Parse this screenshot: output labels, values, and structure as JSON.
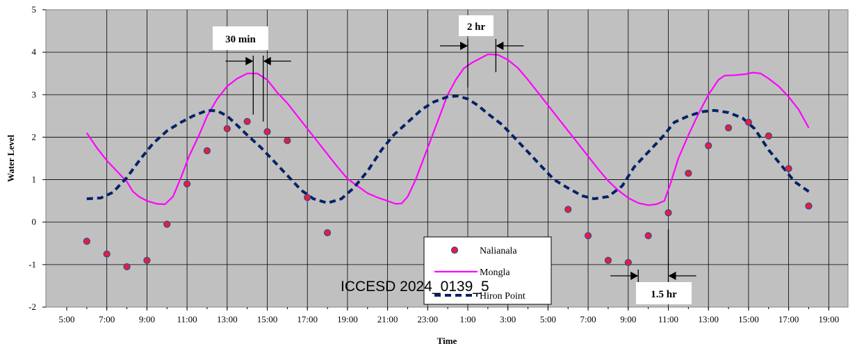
{
  "chart_data": {
    "type": "line",
    "xlabel": "Time",
    "ylabel": "Water Level",
    "ylim": [
      -2,
      5
    ],
    "x_tick_labels": [
      "5:00",
      "7:00",
      "9:00",
      "11:00",
      "13:00",
      "15:00",
      "17:00",
      "19:00",
      "21:00",
      "23:00",
      "1:00",
      "3:00",
      "5:00",
      "7:00",
      "9:00",
      "11:00",
      "13:00",
      "15:00",
      "17:00",
      "19:00"
    ],
    "y_tick_labels": [
      "-2",
      "-1",
      "0",
      "1",
      "2",
      "3",
      "4",
      "5"
    ],
    "grid": true,
    "legend_position": "bottom-center",
    "watermark": "ICCESD 2024_0139_5",
    "series": [
      {
        "name": "Nalianala",
        "style": "marker",
        "color": "#e8202a",
        "points": [
          [
            6,
            -0.45
          ],
          [
            7,
            -0.75
          ],
          [
            8,
            -1.05
          ],
          [
            9,
            -0.9
          ],
          [
            10,
            -0.05
          ],
          [
            11,
            0.9
          ],
          [
            12,
            1.68
          ],
          [
            13,
            2.2
          ],
          [
            14,
            2.37
          ],
          [
            15,
            2.13
          ],
          [
            16,
            1.92
          ],
          [
            17,
            0.58
          ],
          [
            18,
            -0.25
          ],
          [
            30,
            0.3
          ],
          [
            31,
            -0.32
          ],
          [
            32,
            -0.9
          ],
          [
            33,
            -0.95
          ],
          [
            34,
            -0.32
          ],
          [
            35,
            0.22
          ],
          [
            36,
            1.15
          ],
          [
            37,
            1.8
          ],
          [
            38,
            2.22
          ],
          [
            39,
            2.35
          ],
          [
            40,
            2.03
          ],
          [
            41,
            1.26
          ],
          [
            42,
            0.38
          ]
        ]
      },
      {
        "name": "Mongla",
        "style": "line",
        "color": "#ff00ff",
        "points": [
          [
            6,
            2.1
          ],
          [
            6.5,
            1.75
          ],
          [
            7,
            1.45
          ],
          [
            7.5,
            1.2
          ],
          [
            8,
            0.95
          ],
          [
            8.3,
            0.72
          ],
          [
            8.6,
            0.6
          ],
          [
            9,
            0.5
          ],
          [
            9.5,
            0.43
          ],
          [
            9.9,
            0.42
          ],
          [
            10.3,
            0.6
          ],
          [
            10.7,
            1.05
          ],
          [
            11.1,
            1.55
          ],
          [
            11.6,
            2.05
          ],
          [
            12,
            2.5
          ],
          [
            12.5,
            2.9
          ],
          [
            13,
            3.2
          ],
          [
            13.5,
            3.38
          ],
          [
            14,
            3.5
          ],
          [
            14.5,
            3.5
          ],
          [
            15,
            3.35
          ],
          [
            15.5,
            3.05
          ],
          [
            16,
            2.8
          ],
          [
            16.5,
            2.5
          ],
          [
            17,
            2.2
          ],
          [
            17.5,
            1.9
          ],
          [
            18,
            1.6
          ],
          [
            18.5,
            1.3
          ],
          [
            19,
            1.02
          ],
          [
            19.5,
            0.85
          ],
          [
            20,
            0.68
          ],
          [
            20.5,
            0.58
          ],
          [
            21,
            0.5
          ],
          [
            21.4,
            0.43
          ],
          [
            21.7,
            0.44
          ],
          [
            22,
            0.6
          ],
          [
            22.4,
            1.0
          ],
          [
            22.8,
            1.5
          ],
          [
            23.2,
            2.0
          ],
          [
            23.6,
            2.5
          ],
          [
            24,
            3.0
          ],
          [
            24.4,
            3.35
          ],
          [
            24.8,
            3.62
          ],
          [
            25.2,
            3.75
          ],
          [
            25.6,
            3.85
          ],
          [
            26,
            3.95
          ],
          [
            26.5,
            3.94
          ],
          [
            27,
            3.82
          ],
          [
            27.5,
            3.63
          ],
          [
            28,
            3.35
          ],
          [
            28.5,
            3.05
          ],
          [
            29,
            2.75
          ],
          [
            29.5,
            2.45
          ],
          [
            30,
            2.15
          ],
          [
            30.5,
            1.85
          ],
          [
            31,
            1.55
          ],
          [
            31.5,
            1.25
          ],
          [
            32,
            0.97
          ],
          [
            32.5,
            0.75
          ],
          [
            33,
            0.57
          ],
          [
            33.5,
            0.45
          ],
          [
            34,
            0.4
          ],
          [
            34.4,
            0.42
          ],
          [
            34.8,
            0.5
          ],
          [
            35.1,
            0.9
          ],
          [
            35.5,
            1.5
          ],
          [
            36,
            2.05
          ],
          [
            36.5,
            2.55
          ],
          [
            37,
            3.0
          ],
          [
            37.5,
            3.35
          ],
          [
            37.8,
            3.45
          ],
          [
            38.3,
            3.46
          ],
          [
            38.8,
            3.48
          ],
          [
            39.2,
            3.52
          ],
          [
            39.6,
            3.5
          ],
          [
            40,
            3.38
          ],
          [
            40.5,
            3.2
          ],
          [
            41,
            2.95
          ],
          [
            41.5,
            2.65
          ],
          [
            42,
            2.22
          ]
        ]
      },
      {
        "name": "Hiron Point",
        "style": "dashed",
        "color": "#002266",
        "points": [
          [
            6,
            0.55
          ],
          [
            6.7,
            0.57
          ],
          [
            7.3,
            0.7
          ],
          [
            8,
            1.05
          ],
          [
            8.7,
            1.5
          ],
          [
            9.3,
            1.85
          ],
          [
            10,
            2.15
          ],
          [
            10.7,
            2.35
          ],
          [
            11.3,
            2.5
          ],
          [
            12,
            2.63
          ],
          [
            12.5,
            2.62
          ],
          [
            13,
            2.5
          ],
          [
            13.5,
            2.28
          ],
          [
            14,
            2.05
          ],
          [
            14.7,
            1.75
          ],
          [
            15.3,
            1.45
          ],
          [
            16,
            1.1
          ],
          [
            16.7,
            0.75
          ],
          [
            17.3,
            0.55
          ],
          [
            18,
            0.45
          ],
          [
            18.7,
            0.55
          ],
          [
            19.3,
            0.8
          ],
          [
            20,
            1.2
          ],
          [
            20.7,
            1.7
          ],
          [
            21.3,
            2.05
          ],
          [
            22,
            2.35
          ],
          [
            22.7,
            2.65
          ],
          [
            23.3,
            2.83
          ],
          [
            24,
            2.95
          ],
          [
            24.5,
            2.97
          ],
          [
            25,
            2.9
          ],
          [
            25.5,
            2.75
          ],
          [
            26,
            2.55
          ],
          [
            26.7,
            2.3
          ],
          [
            27.3,
            2.0
          ],
          [
            28,
            1.65
          ],
          [
            28.7,
            1.3
          ],
          [
            29.3,
            1.0
          ],
          [
            30,
            0.8
          ],
          [
            30.7,
            0.62
          ],
          [
            31.3,
            0.55
          ],
          [
            32,
            0.6
          ],
          [
            32.7,
            0.85
          ],
          [
            33.3,
            1.3
          ],
          [
            34,
            1.65
          ],
          [
            34.7,
            2.0
          ],
          [
            35.3,
            2.35
          ],
          [
            36,
            2.5
          ],
          [
            36.7,
            2.6
          ],
          [
            37.3,
            2.63
          ],
          [
            38,
            2.58
          ],
          [
            38.7,
            2.45
          ],
          [
            39.3,
            2.2
          ],
          [
            40,
            1.7
          ],
          [
            40.7,
            1.3
          ],
          [
            41.3,
            0.95
          ],
          [
            42,
            0.72
          ]
        ]
      }
    ],
    "annotations": [
      {
        "label": "30 min",
        "marker_x": [
          14.3,
          14.8
        ]
      },
      {
        "label": "2 hr",
        "marker_x": [
          25.0,
          26.4
        ]
      },
      {
        "label": "1.5 hr",
        "marker_x": [
          33.5,
          35.0
        ]
      }
    ]
  }
}
